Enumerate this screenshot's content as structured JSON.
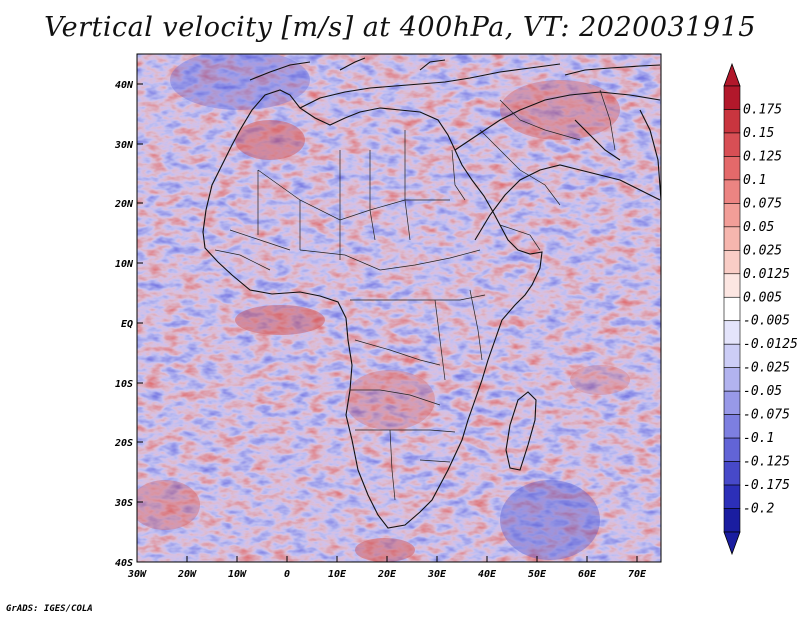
{
  "title": "Vertical velocity [m/s] at 400hPa, VT: 2020031915",
  "footer": "GrADS: IGES/COLA",
  "lat_labels": [
    "40N",
    "30N",
    "20N",
    "10N",
    "EQ",
    "10S",
    "20S",
    "30S",
    "40S"
  ],
  "lon_labels": [
    "30W",
    "20W",
    "10W",
    "0",
    "10E",
    "20E",
    "30E",
    "40E",
    "50E",
    "60E",
    "70E"
  ],
  "colorbar": {
    "labels": [
      "0.175",
      "0.15",
      "0.125",
      "0.1",
      "0.075",
      "0.05",
      "0.025",
      "0.0125",
      "0.005",
      "-0.005",
      "-0.0125",
      "-0.025",
      "-0.05",
      "-0.075",
      "-0.1",
      "-0.125",
      "-0.175",
      "-0.2"
    ],
    "colors": [
      "#b2182b",
      "#c9353f",
      "#d84f55",
      "#e4696a",
      "#ec8482",
      "#f29e98",
      "#f6b6ae",
      "#f9cdc6",
      "#fce6e2",
      "#ffffff",
      "#e4e4fb",
      "#cccdf6",
      "#b2b3ef",
      "#9899e8",
      "#7d7fe0",
      "#6264d6",
      "#4749c9",
      "#2c2fb8",
      "#1a1da0"
    ]
  },
  "map_extent": {
    "lon_min": -30,
    "lon_max": 75,
    "lat_min": -40,
    "lat_max": 45
  }
}
